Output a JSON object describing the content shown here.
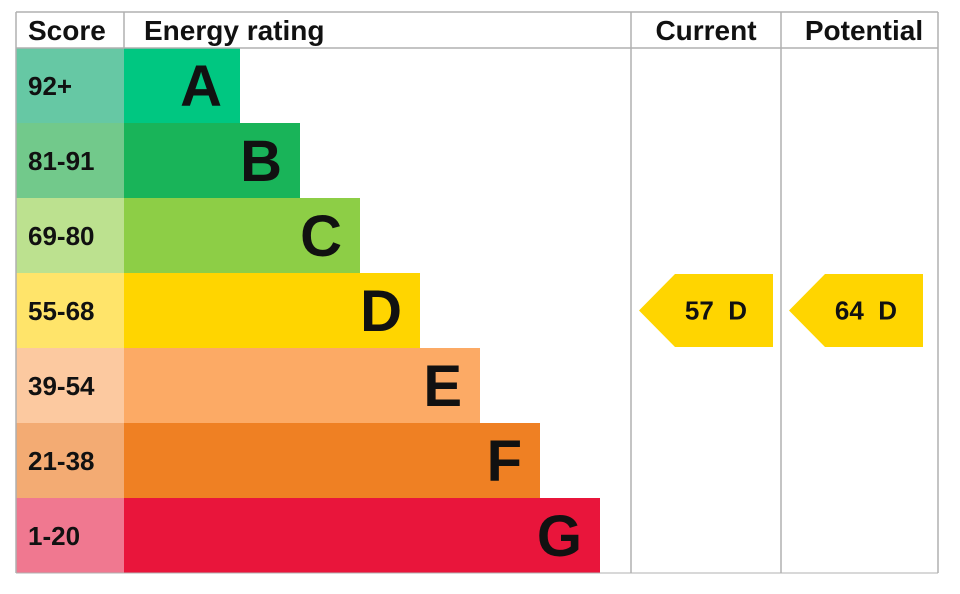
{
  "chart_data": {
    "type": "bar",
    "headers": {
      "score": "Score",
      "rating": "Energy rating",
      "current": "Current",
      "potential": "Potential"
    },
    "bands": [
      {
        "letter": "A",
        "range": "92+",
        "color": "#00c781",
        "score_color": "#66c8a4"
      },
      {
        "letter": "B",
        "range": "81-91",
        "color": "#19b459",
        "score_color": "#72c98b"
      },
      {
        "letter": "C",
        "range": "69-80",
        "color": "#8dce46",
        "score_color": "#bce18f"
      },
      {
        "letter": "D",
        "range": "55-68",
        "color": "#ffd500",
        "score_color": "#ffe46a"
      },
      {
        "letter": "E",
        "range": "39-54",
        "color": "#fcaa65",
        "score_color": "#fcc9a0"
      },
      {
        "letter": "F",
        "range": "21-38",
        "color": "#ef8023",
        "score_color": "#f3ab73"
      },
      {
        "letter": "G",
        "range": "1-20",
        "color": "#e9153b",
        "score_color": "#f07890"
      }
    ],
    "current": {
      "value": 57,
      "band": "D",
      "label": "57  D"
    },
    "potential": {
      "value": 64,
      "band": "D",
      "label": "64  D"
    },
    "grid_color": "#b0b0b0"
  }
}
